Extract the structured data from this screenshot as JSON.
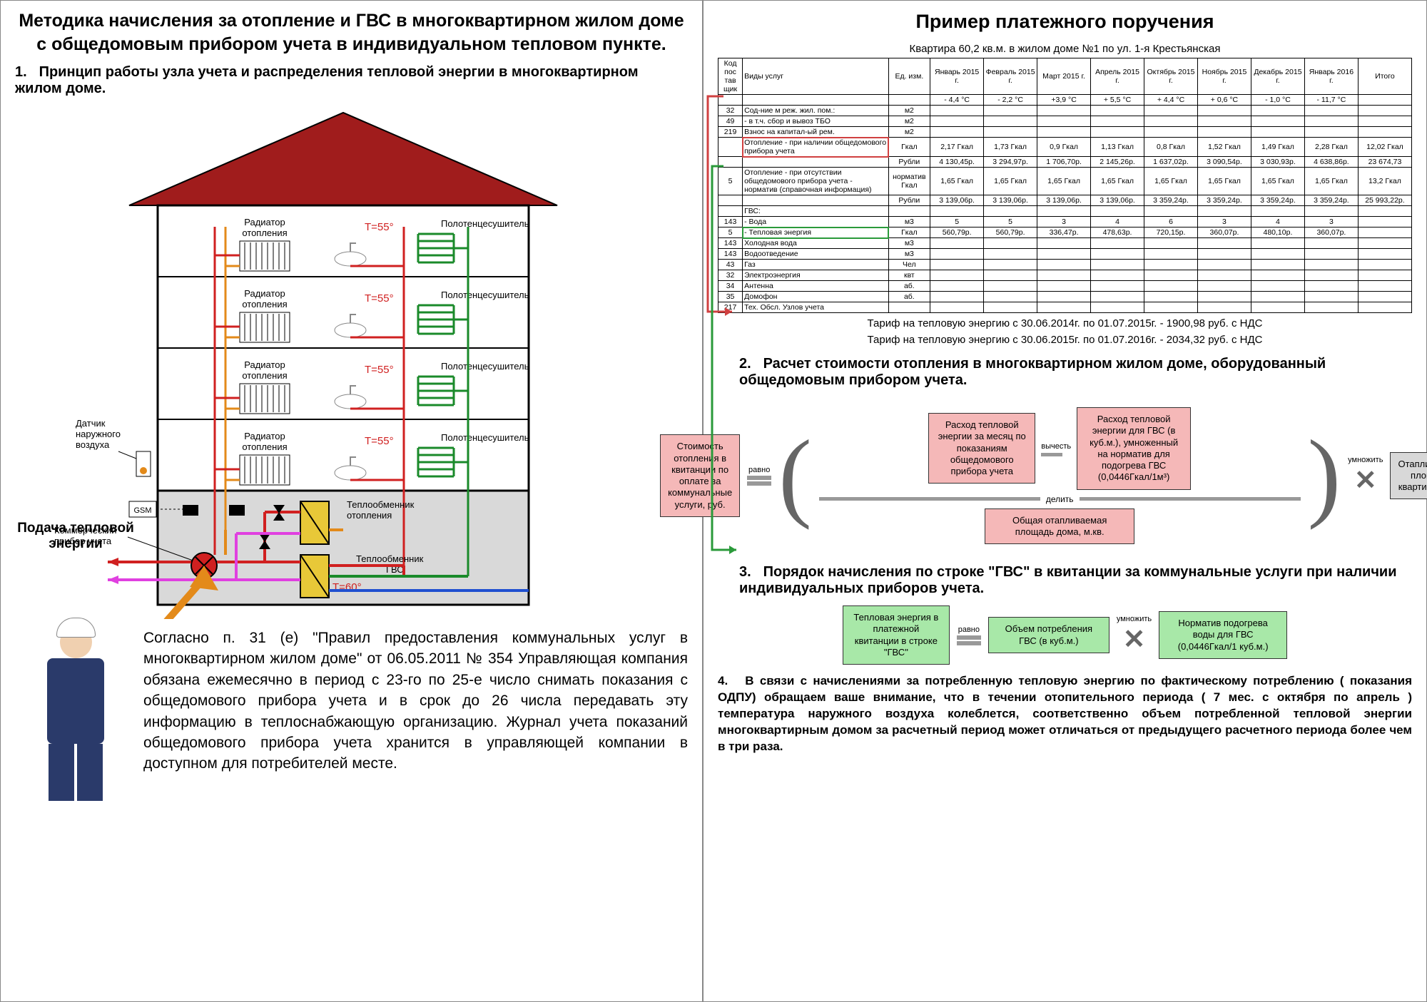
{
  "left": {
    "title": "Методика начисления за отопление и ГВС в многоквартирном жилом доме с общедомовым прибором учета в индивидуальном тепловом пункте.",
    "section1_num": "1.",
    "section1": "Принцип работы узла учета и распределения тепловой энергии в многоквартирном жилом доме.",
    "labels": {
      "radiator": "Радиатор отопления",
      "temp55": "Т=55°",
      "towel": "Полотенцесушитель",
      "sensor": "Датчик наружного воздуха",
      "gsm": "GSM",
      "meter": "Коммерческий прибор учета",
      "supply": "Подача тепловой энергии",
      "hx_heat": "Теплообменник отопления",
      "hx_gvs": "Теплообменник ГВС",
      "t60": "Т=60°"
    },
    "body": "Согласно п. 31 (е) \"Правил предоставления коммунальных услуг в многоквартирном жилом доме\" от 06.05.2011 № 354 Управляющая компания обязана ежемесячно в период с 23-го по 25-е число снимать показания с общедомового прибора учета и в срок до 26 числа передавать эту информацию в теплоснабжающую организацию. Журнал учета показаний общедомового прибора учета хранится в управляющей компании в доступном для потребителей месте.",
    "colors": {
      "roof": "#a01c1c",
      "wall": "#d9d9d9",
      "outline": "#000",
      "orange": "#e38a1a",
      "red": "#d02020",
      "green": "#1a8a2a",
      "magenta": "#e040e0",
      "blue": "#2050d0",
      "yellow": "#e8c838"
    }
  },
  "right": {
    "title": "Пример платежного поручения",
    "table_caption": "Квартира 60,2 кв.м. в жилом доме №1 по ул. 1-я Крестьянская",
    "col_headers_top": [
      "Код пос тав щик",
      "Виды услуг",
      "Ед. изм.",
      "Январь 2015 г.",
      "Февраль 2015 г.",
      "Март 2015 г.",
      "Апрель 2015 г.",
      "Октябрь 2015 г.",
      "Ноябрь 2015 г.",
      "Декабрь 2015 г.",
      "Январь 2016 г.",
      "Итого"
    ],
    "col_headers_temp": [
      "",
      "",
      "",
      "- 4,4 °C",
      "- 2,2 °C",
      "+3,9 °C",
      "+ 5,5 °C",
      "+ 4,4 °C",
      "+ 0,6 °C",
      "- 1,0 °C",
      "- 11,7 °C",
      ""
    ],
    "rows": [
      {
        "code": "32",
        "svc": "Сод-ние м реж. жил. пом.:",
        "unit": "м2",
        "v": [
          "",
          "",
          "",
          "",
          "",
          "",
          "",
          "",
          ""
        ]
      },
      {
        "code": "49",
        "svc": "- в т.ч. сбор и вывоз ТБО",
        "unit": "м2",
        "v": [
          "",
          "",
          "",
          "",
          "",
          "",
          "",
          "",
          ""
        ]
      },
      {
        "code": "219",
        "svc": "Взнос на капитал-ый рем.",
        "unit": "м2",
        "v": [
          "",
          "",
          "",
          "",
          "",
          "",
          "",
          "",
          ""
        ]
      },
      {
        "code": "",
        "svc": "Отопление - при наличии общедомового прибора учета",
        "unit": "Гкал",
        "v": [
          "2,17 Гкал",
          "1,73 Гкал",
          "0,9 Гкал",
          "1,13 Гкал",
          "0,8 Гкал",
          "1,52 Гкал",
          "1,49 Гкал",
          "2,28 Гкал",
          "12,02 Гкал"
        ],
        "hl": "red"
      },
      {
        "code": "",
        "svc": "",
        "unit": "Рубли",
        "v": [
          "4 130,45р.",
          "3 294,97р.",
          "1 706,70р.",
          "2 145,26р.",
          "1 637,02р.",
          "3 090,54р.",
          "3 030,93р.",
          "4 638,86р.",
          "23 674,73"
        ]
      },
      {
        "code": "5",
        "svc": "Отопление - при отсутствии общедомового прибора учета - норматив (справочная информация)",
        "unit": "норматив Гкал",
        "v": [
          "1,65 Гкал",
          "1,65 Гкал",
          "1,65 Гкал",
          "1,65 Гкал",
          "1,65 Гкал",
          "1,65 Гкал",
          "1,65 Гкал",
          "1,65 Гкал",
          "13,2 Гкал"
        ]
      },
      {
        "code": "",
        "svc": "",
        "unit": "Рубли",
        "v": [
          "3 139,06р.",
          "3 139,06р.",
          "3 139,06р.",
          "3 139,06р.",
          "3 359,24р.",
          "3 359,24р.",
          "3 359,24р.",
          "3 359,24р.",
          "25 993,22р."
        ]
      },
      {
        "code": "",
        "svc": "ГВС:",
        "unit": "",
        "v": [
          "",
          "",
          "",
          "",
          "",
          "",
          "",
          "",
          ""
        ]
      },
      {
        "code": "143",
        "svc": "- Вода",
        "unit": "м3",
        "v": [
          "5",
          "5",
          "3",
          "4",
          "6",
          "3",
          "4",
          "3",
          ""
        ]
      },
      {
        "code": "5",
        "svc": "- Тепловая энергия",
        "unit": "Гкал",
        "v": [
          "560,79р.",
          "560,79р.",
          "336,47р.",
          "478,63р.",
          "720,15р.",
          "360,07р.",
          "480,10р.",
          "360,07р.",
          ""
        ],
        "hl": "green"
      },
      {
        "code": "143",
        "svc": "Холодная вода",
        "unit": "м3",
        "v": [
          "",
          "",
          "",
          "",
          "",
          "",
          "",
          "",
          ""
        ]
      },
      {
        "code": "143",
        "svc": "Водоотведение",
        "unit": "м3",
        "v": [
          "",
          "",
          "",
          "",
          "",
          "",
          "",
          "",
          ""
        ]
      },
      {
        "code": "43",
        "svc": "Газ",
        "unit": "Чел",
        "v": [
          "",
          "",
          "",
          "",
          "",
          "",
          "",
          "",
          ""
        ]
      },
      {
        "code": "32",
        "svc": "Электроэнергия",
        "unit": "квт",
        "v": [
          "",
          "",
          "",
          "",
          "",
          "",
          "",
          "",
          ""
        ]
      },
      {
        "code": "34",
        "svc": "Антенна",
        "unit": "аб.",
        "v": [
          "",
          "",
          "",
          "",
          "",
          "",
          "",
          "",
          ""
        ]
      },
      {
        "code": "35",
        "svc": "Домофон",
        "unit": "аб.",
        "v": [
          "",
          "",
          "",
          "",
          "",
          "",
          "",
          "",
          ""
        ]
      },
      {
        "code": "217",
        "svc": "Тех. Обсл. Узлов учета",
        "unit": "",
        "v": [
          "",
          "",
          "",
          "",
          "",
          "",
          "",
          "",
          ""
        ]
      }
    ],
    "tariff1": "Тариф на тепловую энергию с 30.06.2014г. по 01.07.2015г. - 1900,98 руб. с НДС",
    "tariff2": "Тариф на тепловую энергию с 30.06.2015г. по 01.07.2016г. - 2034,32 руб. с НДС",
    "section2_num": "2.",
    "section2": "Расчет стоимости отопления в многоквартирном жилом доме, оборудованный общедомовым прибором учета.",
    "f2": {
      "cost": "Стоимость отопления в квитанции по оплате за коммунальные услуги, руб.",
      "equals": "равно",
      "month": "Расход тепловой энергии за месяц по показаниям общедомового прибора учета",
      "subtract": "вычесть",
      "gvs": "Расход тепловой энергии для ГВС (в куб.м.), умноженный на норматив для подогрева ГВС (0,0446Гкал/1м³)",
      "divide": "делить",
      "area_house": "Общая отапливаемая площадь дома, м.кв.",
      "multiply": "умножить",
      "area_flat": "Отапливаемая площадь квартиры кв.м."
    },
    "section3_num": "3.",
    "section3": "Порядок начисления по строке \"ГВС\" в квитанции за коммунальные услуги при наличии индивидуальных приборов учета.",
    "f3": {
      "te": "Тепловая энергия в платежной квитанции в строке \"ГВС\"",
      "equals": "равно",
      "vol": "Объем потребления ГВС (в куб.м.)",
      "multiply": "умножить",
      "norm": "Норматив подогрева воды для ГВС (0,0446Гкал/1 куб.м.)"
    },
    "section4_num": "4.",
    "section4": "В связи с начислениями за потребленную тепловую энергию по фактическому потреблению ( показания ОДПУ) обращаем ваше внимание, что в течении отопительного периода ( 7 мес. с октября по апрель ) температура наружного воздуха колеблется, соответственно объем     потребленной тепловой энергии многоквартирным домом за расчетный период может отличаться от предыдущего расчетного периода более чем в три раза.",
    "colors": {
      "pink": "#f5b8b8",
      "green": "#a8e8a8",
      "gray": "#d8d8d8",
      "red_arrow": "#d04040",
      "green_arrow": "#2a9a3a"
    }
  }
}
